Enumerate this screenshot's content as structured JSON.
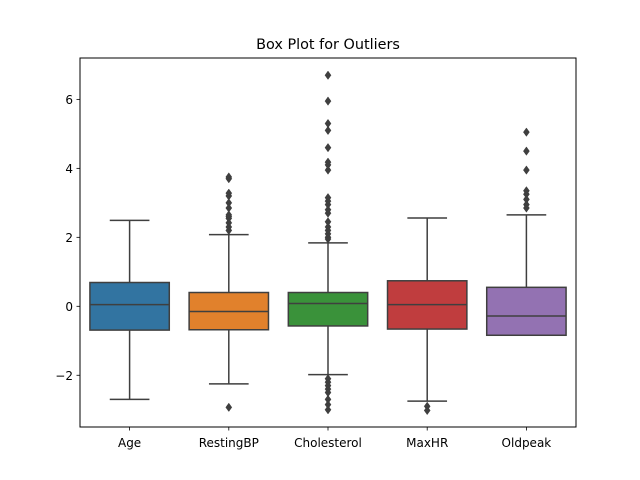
{
  "chart_data": {
    "type": "box",
    "title": "Box Plot for Outliers",
    "xlabel": "",
    "ylabel": "",
    "ylim": [
      -3.5,
      7.2
    ],
    "yticks": [
      -2,
      0,
      2,
      4,
      6
    ],
    "ytick_labels": [
      "−2",
      "0",
      "2",
      "4",
      "6"
    ],
    "grid": false,
    "legend": "none",
    "categories": [
      "Age",
      "RestingBP",
      "Cholesterol",
      "MaxHR",
      "Oldpeak"
    ],
    "boxes": [
      {
        "name": "Age",
        "color": "#3274a1",
        "whisker_low": -2.7,
        "q1": -0.69,
        "median": 0.05,
        "q3": 0.69,
        "whisker_high": 2.49,
        "outliers": []
      },
      {
        "name": "RestingBP",
        "color": "#e1812c",
        "whisker_low": -2.25,
        "q1": -0.68,
        "median": -0.15,
        "q3": 0.4,
        "whisker_high": 2.08,
        "outliers": [
          -2.93,
          2.2,
          2.3,
          2.42,
          2.55,
          2.6,
          2.65,
          2.85,
          3.0,
          3.2,
          3.28,
          3.7,
          3.75
        ]
      },
      {
        "name": "Cholesterol",
        "color": "#3a923a",
        "whisker_low": -1.98,
        "q1": -0.57,
        "median": 0.08,
        "q3": 0.4,
        "whisker_high": 1.84,
        "outliers": [
          -3.0,
          -2.85,
          -2.7,
          -2.5,
          -2.4,
          -2.3,
          -2.2,
          -2.1,
          1.95,
          2.0,
          2.1,
          2.2,
          2.3,
          2.45,
          2.7,
          2.8,
          2.95,
          3.05,
          3.15,
          3.95,
          4.1,
          4.18,
          4.6,
          5.1,
          5.3,
          5.95,
          6.7
        ]
      },
      {
        "name": "MaxHR",
        "color": "#c03d3e",
        "whisker_low": -2.75,
        "q1": -0.66,
        "median": 0.05,
        "q3": 0.74,
        "whisker_high": 2.56,
        "outliers": [
          -2.9,
          -3.02
        ]
      },
      {
        "name": "Oldpeak",
        "color": "#9372b2",
        "whisker_low": -0.84,
        "q1": -0.84,
        "median": -0.28,
        "q3": 0.55,
        "whisker_high": 2.65,
        "outliers": [
          2.85,
          2.95,
          3.1,
          3.25,
          3.35,
          3.95,
          4.5,
          5.05
        ]
      }
    ]
  }
}
